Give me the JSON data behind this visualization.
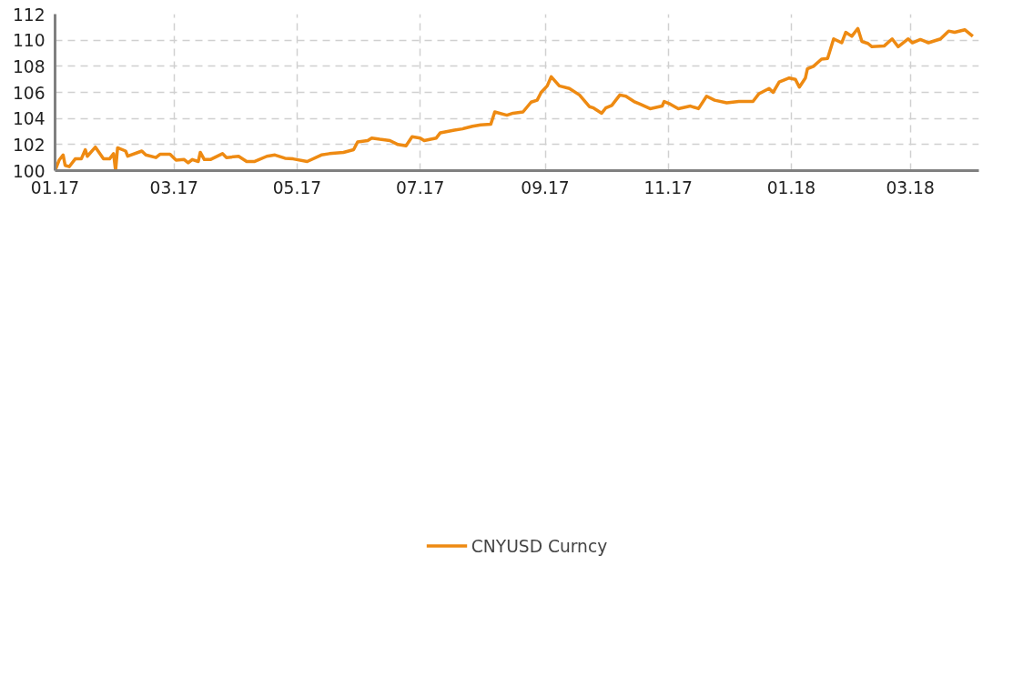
{
  "chart_data": {
    "type": "line",
    "legend": "bottom",
    "grid": true,
    "line_style": "solid",
    "marker": "none",
    "xlim": [
      "2017-01-01",
      "2018-04-04"
    ],
    "xticks": [
      {
        "value": "2017-01-01",
        "label": "01.17"
      },
      {
        "value": "2017-03-01",
        "label": "03.17"
      },
      {
        "value": "2017-05-01",
        "label": "05.17"
      },
      {
        "value": "2017-07-01",
        "label": "07.17"
      },
      {
        "value": "2017-09-01",
        "label": "09.17"
      },
      {
        "value": "2017-11-01",
        "label": "11.17"
      },
      {
        "value": "2018-01-01",
        "label": "01.18"
      },
      {
        "value": "2018-03-01",
        "label": "03.18"
      }
    ],
    "ylim": [
      100,
      112
    ],
    "yticks": [
      100,
      102,
      104,
      106,
      108,
      110,
      112
    ],
    "x": [
      "2017-01-01",
      "2017-01-03",
      "2017-01-05",
      "2017-01-06",
      "2017-01-08",
      "2017-01-11",
      "2017-01-14",
      "2017-01-16",
      "2017-01-17",
      "2017-01-21",
      "2017-01-25",
      "2017-01-28",
      "2017-01-30",
      "2017-01-31",
      "2017-02-01",
      "2017-02-05",
      "2017-02-06",
      "2017-02-13",
      "2017-02-15",
      "2017-02-20",
      "2017-02-22",
      "2017-02-27",
      "2017-03-02",
      "2017-03-06",
      "2017-03-08",
      "2017-03-10",
      "2017-03-13",
      "2017-03-14",
      "2017-03-16",
      "2017-03-19",
      "2017-03-25",
      "2017-03-27",
      "2017-04-02",
      "2017-04-06",
      "2017-04-10",
      "2017-04-16",
      "2017-04-20",
      "2017-04-25",
      "2017-04-29",
      "2017-05-06",
      "2017-05-13",
      "2017-05-17",
      "2017-05-24",
      "2017-05-29",
      "2017-05-31",
      "2017-06-05",
      "2017-06-07",
      "2017-06-11",
      "2017-06-16",
      "2017-06-20",
      "2017-06-24",
      "2017-06-27",
      "2017-07-01",
      "2017-07-03",
      "2017-07-09",
      "2017-07-11",
      "2017-07-18",
      "2017-07-22",
      "2017-07-27",
      "2017-07-31",
      "2017-08-05",
      "2017-08-07",
      "2017-08-13",
      "2017-08-16",
      "2017-08-21",
      "2017-08-25",
      "2017-08-28",
      "2017-08-30",
      "2017-09-02",
      "2017-09-04",
      "2017-09-08",
      "2017-09-13",
      "2017-09-18",
      "2017-09-23",
      "2017-09-25",
      "2017-09-29",
      "2017-10-01",
      "2017-10-04",
      "2017-10-08",
      "2017-10-11",
      "2017-10-15",
      "2017-10-18",
      "2017-10-23",
      "2017-10-29",
      "2017-10-30",
      "2017-11-02",
      "2017-11-06",
      "2017-11-12",
      "2017-11-16",
      "2017-11-20",
      "2017-11-24",
      "2017-11-30",
      "2017-12-06",
      "2017-12-09",
      "2017-12-13",
      "2017-12-16",
      "2017-12-21",
      "2017-12-23",
      "2017-12-26",
      "2017-12-31",
      "2018-01-03",
      "2018-01-05",
      "2018-01-08",
      "2018-01-09",
      "2018-01-12",
      "2018-01-16",
      "2018-01-19",
      "2018-01-22",
      "2018-01-26",
      "2018-01-28",
      "2018-01-31",
      "2018-02-03",
      "2018-02-05",
      "2018-02-08",
      "2018-02-10",
      "2018-02-16",
      "2018-02-20",
      "2018-02-23",
      "2018-02-28",
      "2018-03-02",
      "2018-03-06",
      "2018-03-10",
      "2018-03-16",
      "2018-03-20",
      "2018-03-23",
      "2018-03-28",
      "2018-04-01"
    ],
    "series": [
      {
        "name": "CNYUSD Curncy",
        "color": "#ee8a12",
        "values": [
          100.0,
          100.8,
          101.2,
          100.4,
          100.3,
          100.9,
          100.9,
          101.6,
          101.1,
          101.8,
          100.9,
          100.9,
          101.3,
          100.0,
          101.75,
          101.5,
          101.1,
          101.5,
          101.2,
          101.0,
          101.25,
          101.25,
          100.8,
          100.85,
          100.6,
          100.85,
          100.7,
          101.4,
          100.85,
          100.85,
          101.3,
          101.0,
          101.1,
          100.7,
          100.7,
          101.1,
          101.2,
          100.95,
          100.9,
          100.7,
          101.2,
          101.3,
          101.4,
          101.6,
          102.2,
          102.3,
          102.5,
          102.4,
          102.3,
          102.0,
          101.9,
          102.6,
          102.5,
          102.3,
          102.5,
          102.9,
          103.1,
          103.2,
          103.4,
          103.5,
          103.55,
          104.5,
          104.25,
          104.4,
          104.5,
          105.25,
          105.4,
          106.0,
          106.5,
          107.2,
          106.5,
          106.3,
          105.8,
          104.9,
          104.8,
          104.4,
          104.8,
          105.0,
          105.8,
          105.7,
          105.3,
          105.1,
          104.75,
          104.95,
          105.3,
          105.1,
          104.75,
          104.95,
          104.75,
          105.7,
          105.4,
          105.2,
          105.3,
          105.3,
          105.3,
          105.9,
          106.3,
          106.0,
          106.8,
          107.1,
          107.0,
          106.4,
          107.1,
          107.8,
          108.0,
          108.55,
          108.6,
          110.1,
          109.8,
          110.6,
          110.3,
          110.9,
          109.9,
          109.75,
          109.5,
          109.55,
          110.1,
          109.5,
          110.1,
          109.8,
          110.05,
          109.8,
          110.1,
          110.7,
          110.6,
          110.8,
          110.3
        ]
      }
    ]
  }
}
